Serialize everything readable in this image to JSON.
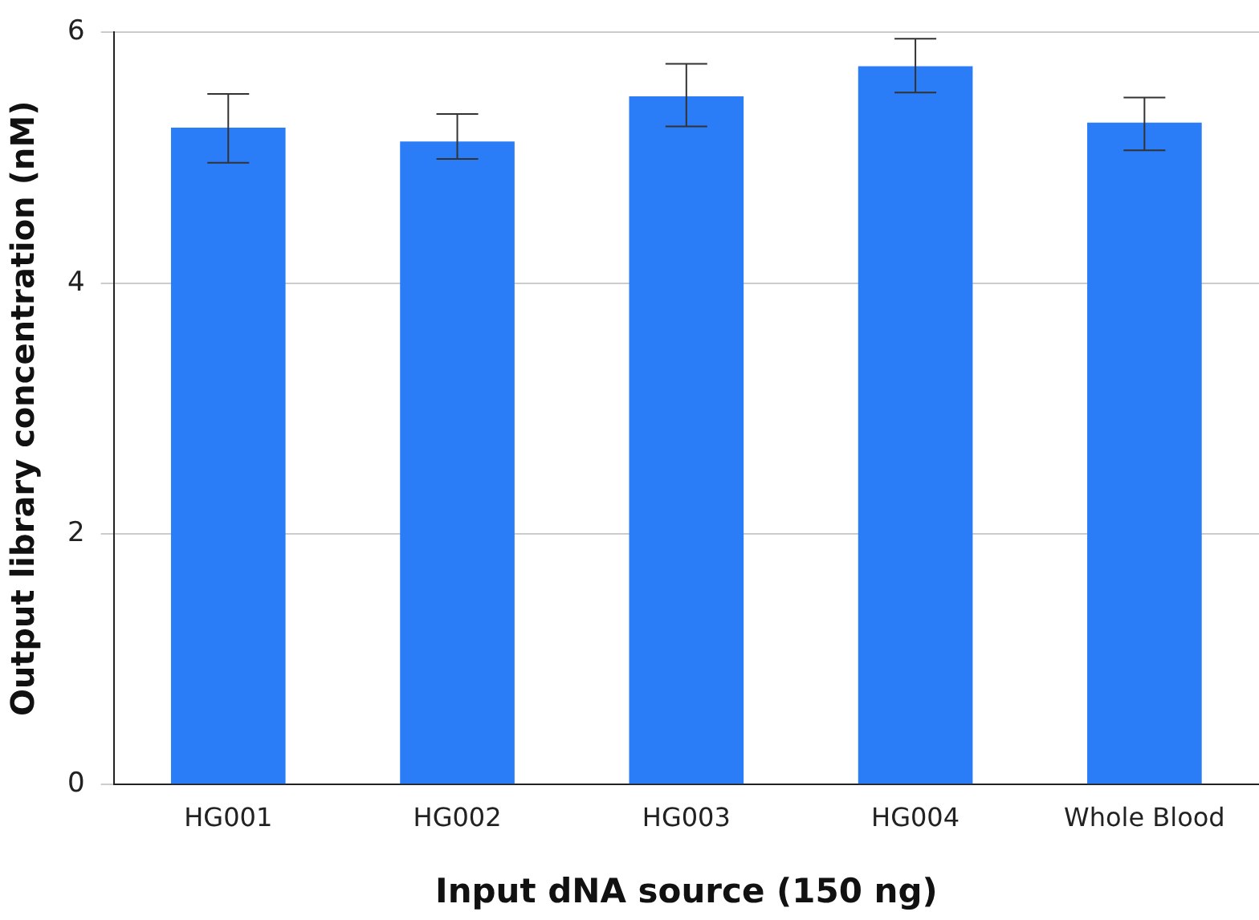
{
  "chart_data": {
    "type": "bar",
    "xlabel": "Input dNA source (150 ng)",
    "ylabel": "Output library concentration (nM)",
    "categories": [
      "HG001",
      "HG002",
      "HG003",
      "HG004",
      "Whole Blood"
    ],
    "values": [
      5.24,
      5.13,
      5.49,
      5.73,
      5.28
    ],
    "errors": [
      [
        4.96,
        5.51
      ],
      [
        4.99,
        5.35
      ],
      [
        5.25,
        5.75
      ],
      [
        5.52,
        5.95
      ],
      [
        5.06,
        5.48
      ]
    ],
    "color": "#2b7cf7",
    "ylim": [
      0,
      6
    ],
    "yticks": [
      0,
      2,
      4,
      6
    ],
    "grid": "y",
    "legend": false
  }
}
